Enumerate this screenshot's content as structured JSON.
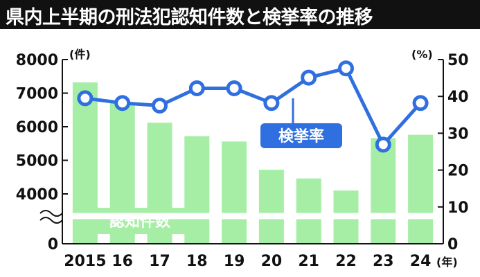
{
  "title": "県内上半期の刑法犯認知件数と検挙率の推移",
  "chart_data": {
    "type": "bar+line",
    "title": "県内上半期の刑法犯認知件数と検挙率の推移",
    "categories": [
      "2015",
      "16",
      "17",
      "18",
      "19",
      "20",
      "21",
      "22",
      "23",
      "24"
    ],
    "x_unit_label": "(年)",
    "y_left": {
      "unit_label": "(件)",
      "ticks": [
        "8000",
        "7000",
        "6000",
        "5000",
        "4000",
        "0"
      ],
      "range": [
        3500,
        8000
      ],
      "axis_break": true
    },
    "y_right": {
      "unit_label": "(%)",
      "ticks": [
        "50",
        "40",
        "30",
        "20",
        "10",
        "0"
      ],
      "range": [
        0,
        50
      ]
    },
    "series": [
      {
        "name": "認知件数",
        "type": "bar",
        "axis": "left",
        "color": "#a6eea6",
        "values": [
          7320,
          6720,
          6120,
          5720,
          5560,
          4720,
          4460,
          4100,
          5660,
          5760
        ]
      },
      {
        "name": "検挙率",
        "type": "line",
        "axis": "right",
        "color": "#2f6fe0",
        "values": [
          39.5,
          38.2,
          37.5,
          42.2,
          42.2,
          38.2,
          45.1,
          47.6,
          26.9,
          38.2
        ]
      }
    ],
    "legend_labels": {
      "bars": "認知件数",
      "line": "検挙率"
    },
    "grid": false
  }
}
